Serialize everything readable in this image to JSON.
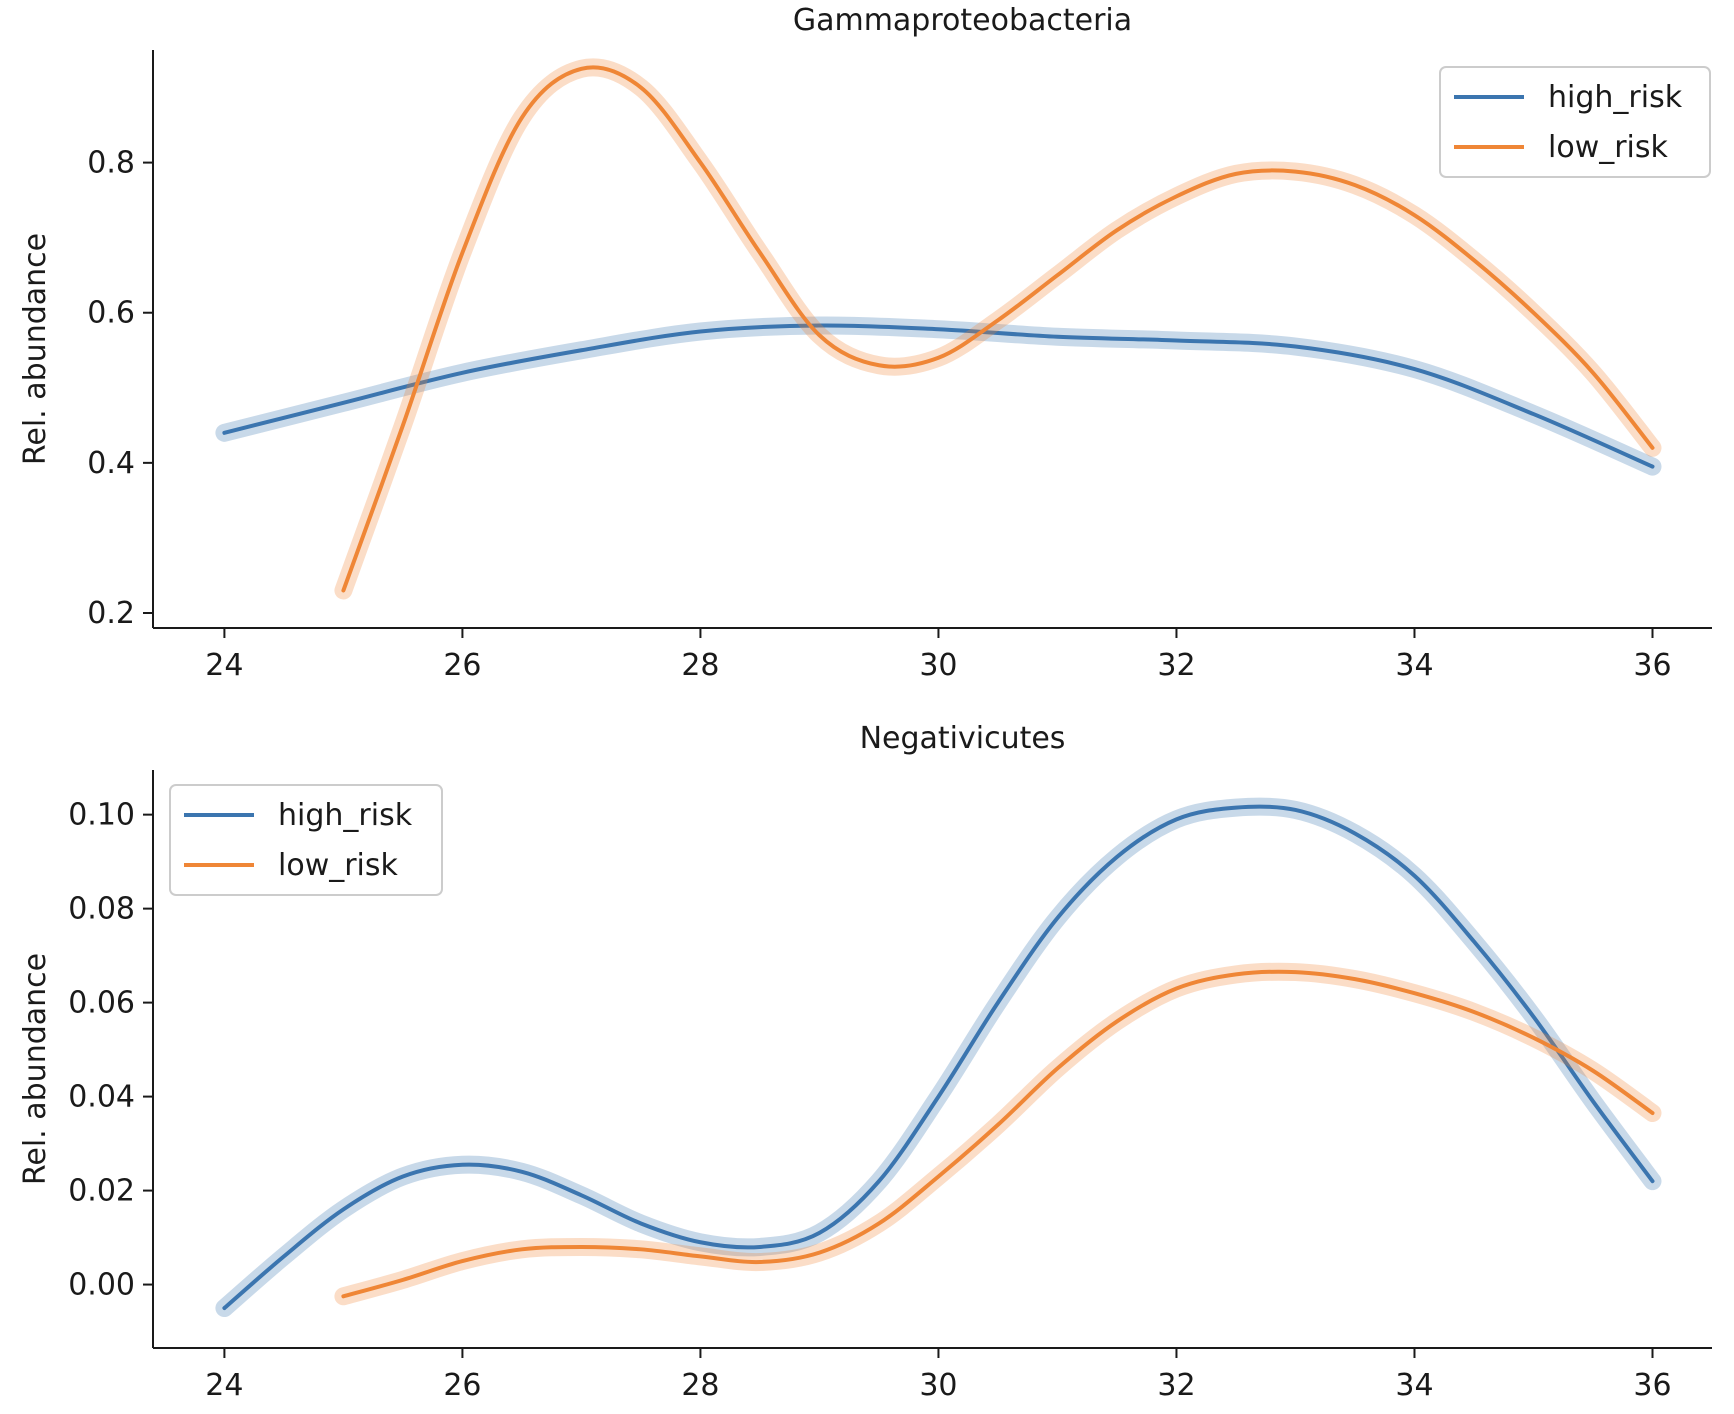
{
  "chart_data": [
    {
      "type": "line",
      "title": "Gammaproteobacteria",
      "xlabel": "",
      "ylabel": "Rel. abundance",
      "xlim": [
        23.4,
        36.5
      ],
      "ylim": [
        0.18,
        0.95
      ],
      "xticks": [
        24,
        26,
        28,
        30,
        32,
        34,
        36
      ],
      "yticks": [
        0.2,
        0.4,
        0.6,
        0.8
      ],
      "ytick_labels": [
        "0.2",
        "0.4",
        "0.6",
        "0.8"
      ],
      "legend_position": "top-right",
      "grid": false,
      "series": [
        {
          "name": "high_risk",
          "color": "#3b75af",
          "x": [
            24,
            25,
            26,
            27,
            28,
            29,
            30,
            31,
            32,
            33,
            34,
            35,
            36
          ],
          "y": [
            0.44,
            0.48,
            0.52,
            0.55,
            0.575,
            0.583,
            0.578,
            0.568,
            0.563,
            0.555,
            0.525,
            0.465,
            0.395
          ]
        },
        {
          "name": "low_risk",
          "color": "#ef8636",
          "x": [
            25,
            25.5,
            26,
            26.5,
            27,
            27.5,
            28,
            28.5,
            29,
            29.5,
            30,
            30.5,
            31,
            31.5,
            32,
            32.5,
            33,
            33.5,
            34,
            34.5,
            35,
            35.5,
            36
          ],
          "y": [
            0.23,
            0.45,
            0.68,
            0.86,
            0.925,
            0.9,
            0.8,
            0.68,
            0.57,
            0.53,
            0.54,
            0.59,
            0.65,
            0.71,
            0.755,
            0.785,
            0.788,
            0.77,
            0.73,
            0.67,
            0.6,
            0.52,
            0.42
          ]
        }
      ]
    },
    {
      "type": "line",
      "title": "Negativicutes",
      "xlabel": "",
      "ylabel": "Rel. abundance",
      "xlim": [
        23.4,
        36.5
      ],
      "ylim": [
        -0.0135,
        0.1095
      ],
      "xticks": [
        24,
        26,
        28,
        30,
        32,
        34,
        36
      ],
      "yticks": [
        0.0,
        0.02,
        0.04,
        0.06,
        0.08,
        0.1
      ],
      "ytick_labels": [
        "0.00",
        "0.02",
        "0.04",
        "0.06",
        "0.08",
        "0.10"
      ],
      "legend_position": "top-left",
      "grid": false,
      "series": [
        {
          "name": "high_risk",
          "color": "#3b75af",
          "x": [
            24,
            24.5,
            25,
            25.5,
            26,
            26.5,
            27,
            27.5,
            28,
            28.5,
            29,
            29.5,
            30,
            30.5,
            31,
            31.5,
            32,
            32.5,
            33,
            33.5,
            34,
            34.5,
            35,
            35.5,
            36
          ],
          "y": [
            -0.005,
            0.006,
            0.016,
            0.023,
            0.0255,
            0.024,
            0.019,
            0.013,
            0.009,
            0.008,
            0.011,
            0.022,
            0.04,
            0.06,
            0.078,
            0.091,
            0.099,
            0.1015,
            0.101,
            0.096,
            0.087,
            0.073,
            0.057,
            0.039,
            0.022
          ]
        },
        {
          "name": "low_risk",
          "color": "#ef8636",
          "x": [
            25,
            25.5,
            26,
            26.5,
            27,
            27.5,
            28,
            28.5,
            29,
            29.5,
            30,
            30.5,
            31,
            31.5,
            32,
            32.5,
            33,
            33.5,
            34,
            34.5,
            35,
            35.5,
            36
          ],
          "y": [
            -0.0025,
            0.001,
            0.005,
            0.0075,
            0.008,
            0.0075,
            0.006,
            0.0048,
            0.0068,
            0.013,
            0.023,
            0.034,
            0.046,
            0.056,
            0.063,
            0.066,
            0.0665,
            0.065,
            0.062,
            0.058,
            0.0525,
            0.0455,
            0.0365
          ]
        }
      ]
    }
  ]
}
